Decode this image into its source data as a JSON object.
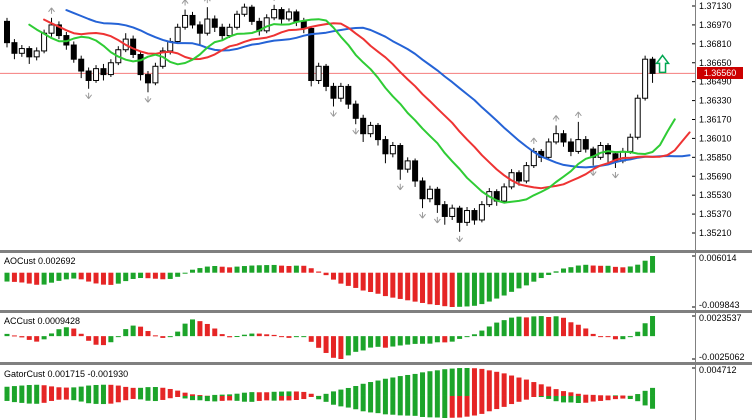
{
  "ui": {
    "price_tag": "1.36560",
    "panel_labels": [
      "AOCust 0.002692",
      "ACCust 0.0009428",
      "GatorCust 0.001715 -0.001930"
    ]
  },
  "chart_data": {
    "type": "candlestick_with_indicator_panels",
    "title": "",
    "grid": "off",
    "legend": "none",
    "price_axis_ticks": [
      "1.37130",
      "1.36970",
      "1.36810",
      "1.36650",
      "1.36490",
      "1.36330",
      "1.36170",
      "1.36010",
      "1.35850",
      "1.35690",
      "1.35530",
      "1.35370",
      "1.35210"
    ],
    "current_price": 1.3656,
    "current_price_label": "1.36560",
    "horizontal_line_price": 1.3656,
    "signal_arrow": {
      "direction": "up",
      "color": "#00a651",
      "position": "right-of-last-candle"
    },
    "colors": {
      "bull_candle": "#ffffff",
      "bear_candle": "#000000",
      "candle_border": "#000000",
      "alligator_jaw_blue": "#2563d6",
      "alligator_teeth_red": "#ee3333",
      "alligator_lips_green": "#2fcc35",
      "hline_red": "#f47d7d",
      "tag_red": "#cc0000",
      "hist_up_green": "#1ca42a",
      "hist_down_red": "#e52525",
      "separator_gray": "#808080",
      "fractal_gray": "#9a9a9a"
    },
    "alligator": {
      "jaw": {
        "period": 13,
        "shift": 8,
        "color": "#2563d6"
      },
      "teeth": {
        "period": 8,
        "shift": 5,
        "color": "#ee3333"
      },
      "lips": {
        "period": 5,
        "shift": 3,
        "color": "#2fcc35"
      }
    },
    "warmup_closes": [
      1.376,
      1.3757,
      1.3755,
      1.375,
      1.3748,
      1.3752,
      1.3747,
      1.3742,
      1.3744,
      1.3738,
      1.3735,
      1.3737,
      1.373,
      1.3726,
      1.3728,
      1.3722,
      1.3718,
      1.372,
      1.3714,
      1.371,
      1.3712,
      1.3708,
      1.3704,
      1.3706,
      1.3702,
      1.3698,
      1.37,
      1.3696,
      1.3694,
      1.3697,
      1.3693,
      1.3695,
      1.3698,
      1.37
    ],
    "candles": [
      [
        1.37,
        1.3703,
        1.3678,
        1.3682
      ],
      [
        1.3682,
        1.3685,
        1.3668,
        1.3673
      ],
      [
        1.3673,
        1.368,
        1.367,
        1.3677
      ],
      [
        1.3677,
        1.3679,
        1.3664,
        1.367
      ],
      [
        1.367,
        1.3678,
        1.3667,
        1.3675
      ],
      [
        1.3675,
        1.3693,
        1.3673,
        1.369
      ],
      [
        1.369,
        1.3703,
        1.3687,
        1.3697
      ],
      [
        1.3697,
        1.37,
        1.3685,
        1.3688
      ],
      [
        1.3688,
        1.3691,
        1.3676,
        1.368
      ],
      [
        1.368,
        1.3683,
        1.3665,
        1.3668
      ],
      [
        1.3668,
        1.3671,
        1.3652,
        1.3658
      ],
      [
        1.3658,
        1.3661,
        1.3643,
        1.365
      ],
      [
        1.365,
        1.3663,
        1.3648,
        1.366
      ],
      [
        1.366,
        1.3664,
        1.365,
        1.3655
      ],
      [
        1.3655,
        1.3668,
        1.3653,
        1.3665
      ],
      [
        1.3665,
        1.3679,
        1.3663,
        1.3676
      ],
      [
        1.3676,
        1.369,
        1.3674,
        1.3685
      ],
      [
        1.3685,
        1.3688,
        1.3669,
        1.3672
      ],
      [
        1.3672,
        1.3675,
        1.365,
        1.3655
      ],
      [
        1.3655,
        1.3658,
        1.364,
        1.3648
      ],
      [
        1.3648,
        1.3665,
        1.3646,
        1.3662
      ],
      [
        1.3662,
        1.3678,
        1.366,
        1.3675
      ],
      [
        1.3675,
        1.3686,
        1.3672,
        1.3683
      ],
      [
        1.3683,
        1.3698,
        1.3681,
        1.3695
      ],
      [
        1.3695,
        1.371,
        1.3693,
        1.3705
      ],
      [
        1.3705,
        1.3708,
        1.3694,
        1.3697
      ],
      [
        1.3697,
        1.37,
        1.368,
        1.369
      ],
      [
        1.369,
        1.3712,
        1.3688,
        1.3702
      ],
      [
        1.3702,
        1.3705,
        1.3691,
        1.3695
      ],
      [
        1.3695,
        1.3698,
        1.3684,
        1.3688
      ],
      [
        1.3688,
        1.3698,
        1.3686,
        1.3695
      ],
      [
        1.3695,
        1.3709,
        1.3693,
        1.3706
      ],
      [
        1.3706,
        1.3715,
        1.3704,
        1.3712
      ],
      [
        1.3712,
        1.3714,
        1.3697,
        1.37
      ],
      [
        1.37,
        1.3703,
        1.3688,
        1.3692
      ],
      [
        1.3692,
        1.3706,
        1.369,
        1.3703
      ],
      [
        1.3703,
        1.3714,
        1.3701,
        1.371
      ],
      [
        1.371,
        1.3712,
        1.3698,
        1.3702
      ],
      [
        1.3702,
        1.3711,
        1.37,
        1.3708
      ],
      [
        1.3708,
        1.371,
        1.3696,
        1.37
      ],
      [
        1.37,
        1.3703,
        1.369,
        1.3694
      ],
      [
        1.3694,
        1.3696,
        1.3645,
        1.365
      ],
      [
        1.365,
        1.3665,
        1.3647,
        1.3662
      ],
      [
        1.3662,
        1.3664,
        1.3641,
        1.3645
      ],
      [
        1.3645,
        1.3648,
        1.3628,
        1.3635
      ],
      [
        1.3635,
        1.3648,
        1.3632,
        1.3645
      ],
      [
        1.3645,
        1.3647,
        1.3626,
        1.363
      ],
      [
        1.363,
        1.3633,
        1.3613,
        1.3618
      ],
      [
        1.3618,
        1.3621,
        1.3598,
        1.3605
      ],
      [
        1.3605,
        1.3615,
        1.3602,
        1.3612
      ],
      [
        1.3612,
        1.3614,
        1.3595,
        1.36
      ],
      [
        1.36,
        1.3603,
        1.358,
        1.3588
      ],
      [
        1.3588,
        1.3598,
        1.3585,
        1.3595
      ],
      [
        1.3595,
        1.3597,
        1.3566,
        1.3575
      ],
      [
        1.3575,
        1.3585,
        1.3572,
        1.3582
      ],
      [
        1.3582,
        1.3584,
        1.356,
        1.3565
      ],
      [
        1.3565,
        1.3568,
        1.3542,
        1.355
      ],
      [
        1.355,
        1.3561,
        1.3547,
        1.3558
      ],
      [
        1.3558,
        1.356,
        1.3538,
        1.3545
      ],
      [
        1.3545,
        1.3548,
        1.3528,
        1.3535
      ],
      [
        1.3535,
        1.3545,
        1.3532,
        1.3542
      ],
      [
        1.3542,
        1.3544,
        1.3522,
        1.353
      ],
      [
        1.353,
        1.3543,
        1.3527,
        1.354
      ],
      [
        1.354,
        1.3542,
        1.3528,
        1.3532
      ],
      [
        1.3532,
        1.3548,
        1.353,
        1.3545
      ],
      [
        1.3545,
        1.3559,
        1.3543,
        1.3556
      ],
      [
        1.3556,
        1.3558,
        1.3544,
        1.3548
      ],
      [
        1.3548,
        1.3563,
        1.3546,
        1.356
      ],
      [
        1.356,
        1.3575,
        1.3558,
        1.3572
      ],
      [
        1.3572,
        1.3574,
        1.3561,
        1.3565
      ],
      [
        1.3565,
        1.3581,
        1.3563,
        1.3578
      ],
      [
        1.3578,
        1.3593,
        1.3576,
        1.359
      ],
      [
        1.359,
        1.3592,
        1.3581,
        1.3585
      ],
      [
        1.3585,
        1.3601,
        1.3583,
        1.3598
      ],
      [
        1.3598,
        1.3612,
        1.3596,
        1.3605
      ],
      [
        1.3605,
        1.3608,
        1.3594,
        1.3598
      ],
      [
        1.3598,
        1.3601,
        1.3586,
        1.359
      ],
      [
        1.359,
        1.3615,
        1.3588,
        1.36
      ],
      [
        1.36,
        1.3603,
        1.3589,
        1.3592
      ],
      [
        1.3592,
        1.3594,
        1.3578,
        1.3585
      ],
      [
        1.3585,
        1.3598,
        1.3583,
        1.3595
      ],
      [
        1.3595,
        1.3597,
        1.358,
        1.3588
      ],
      [
        1.3588,
        1.359,
        1.3576,
        1.3582
      ],
      [
        1.3582,
        1.3593,
        1.358,
        1.359
      ],
      [
        1.359,
        1.3605,
        1.3588,
        1.3602
      ],
      [
        1.3602,
        1.3638,
        1.36,
        1.3635
      ],
      [
        1.3635,
        1.3671,
        1.3633,
        1.3668
      ],
      [
        1.3668,
        1.367,
        1.3648,
        1.3656
      ]
    ],
    "fractals_up": [
      6,
      24,
      27,
      32,
      36,
      71,
      74,
      77
    ],
    "fractals_down": [
      11,
      19,
      44,
      47,
      53,
      56,
      58,
      61,
      79,
      82
    ],
    "panels": [
      {
        "name": "AOCust",
        "label": "AOCust 0.002692",
        "indicator": "AO",
        "last_value": 0.002692,
        "axis_max_label": "0.006014",
        "axis_min_label": "-0.009843"
      },
      {
        "name": "ACCust",
        "label": "ACCust 0.0009428",
        "indicator": "AC",
        "last_value": 0.0009428,
        "axis_max_label": "0.0023537",
        "axis_min_label": "-0.0025062"
      },
      {
        "name": "GatorCust",
        "label": "GatorCust 0.001715 -0.001930",
        "indicator": "GATOR",
        "last_values": [
          0.001715,
          -0.00193
        ],
        "axis_max_label": "0.004712",
        "axis_min_label": ""
      }
    ]
  }
}
